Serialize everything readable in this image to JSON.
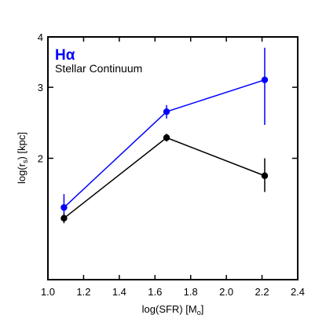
{
  "chart_data": {
    "type": "line",
    "xlabel": "log(SFR) [M",
    "xlabel_subscript": "o",
    "xlabel_suffix": "]",
    "ylabel": "log(r",
    "ylabel_subscript": "s",
    "ylabel_suffix": ") [kpc]",
    "xlim": [
      1.0,
      2.4
    ],
    "ylim": [
      1.0,
      4.0
    ],
    "y_scale": "log",
    "x_ticks": [
      {
        "value": 1.0,
        "label": "1.0"
      },
      {
        "value": 1.2,
        "label": "1.2"
      },
      {
        "value": 1.4,
        "label": "1.4"
      },
      {
        "value": 1.6,
        "label": "1.6"
      },
      {
        "value": 1.8,
        "label": "1.8"
      },
      {
        "value": 2.0,
        "label": "2.0"
      },
      {
        "value": 2.2,
        "label": "2.2"
      },
      {
        "value": 2.4,
        "label": "2.4"
      }
    ],
    "y_ticks": [
      {
        "value": 2,
        "label": "2"
      },
      {
        "value": 3,
        "label": "3"
      },
      {
        "value": 4,
        "label": "4"
      }
    ],
    "grid": false,
    "legend_position": "top-left",
    "series": [
      {
        "name": "Hα",
        "color": "#0000ff",
        "x": [
          1.09,
          1.665,
          2.215
        ],
        "y": [
          1.51,
          2.61,
          3.13
        ],
        "yerr_low": [
          1.45,
          2.51,
          2.42
        ],
        "yerr_high": [
          1.63,
          2.71,
          3.76
        ]
      },
      {
        "name": "Stellar Continuum",
        "color": "#000000",
        "x": [
          1.09,
          1.665,
          2.215
        ],
        "y": [
          1.42,
          2.25,
          1.81
        ],
        "yerr_low": [
          1.38,
          2.2,
          1.65
        ],
        "yerr_high": [
          1.46,
          2.3,
          2.0
        ]
      }
    ]
  }
}
